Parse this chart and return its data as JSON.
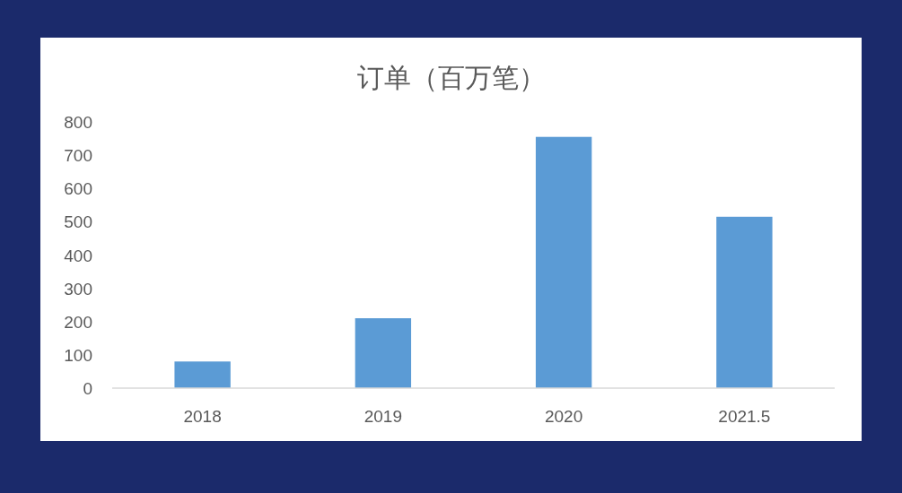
{
  "chart_data": {
    "type": "bar",
    "title": "订单（百万笔）",
    "categories": [
      "2018",
      "2019",
      "2020",
      "2021.5"
    ],
    "values": [
      80,
      210,
      755,
      515
    ],
    "color": "#5b9bd5",
    "ylim": [
      0,
      800
    ],
    "yticks": [
      0,
      100,
      200,
      300,
      400,
      500,
      600,
      700,
      800
    ],
    "grid": false
  }
}
